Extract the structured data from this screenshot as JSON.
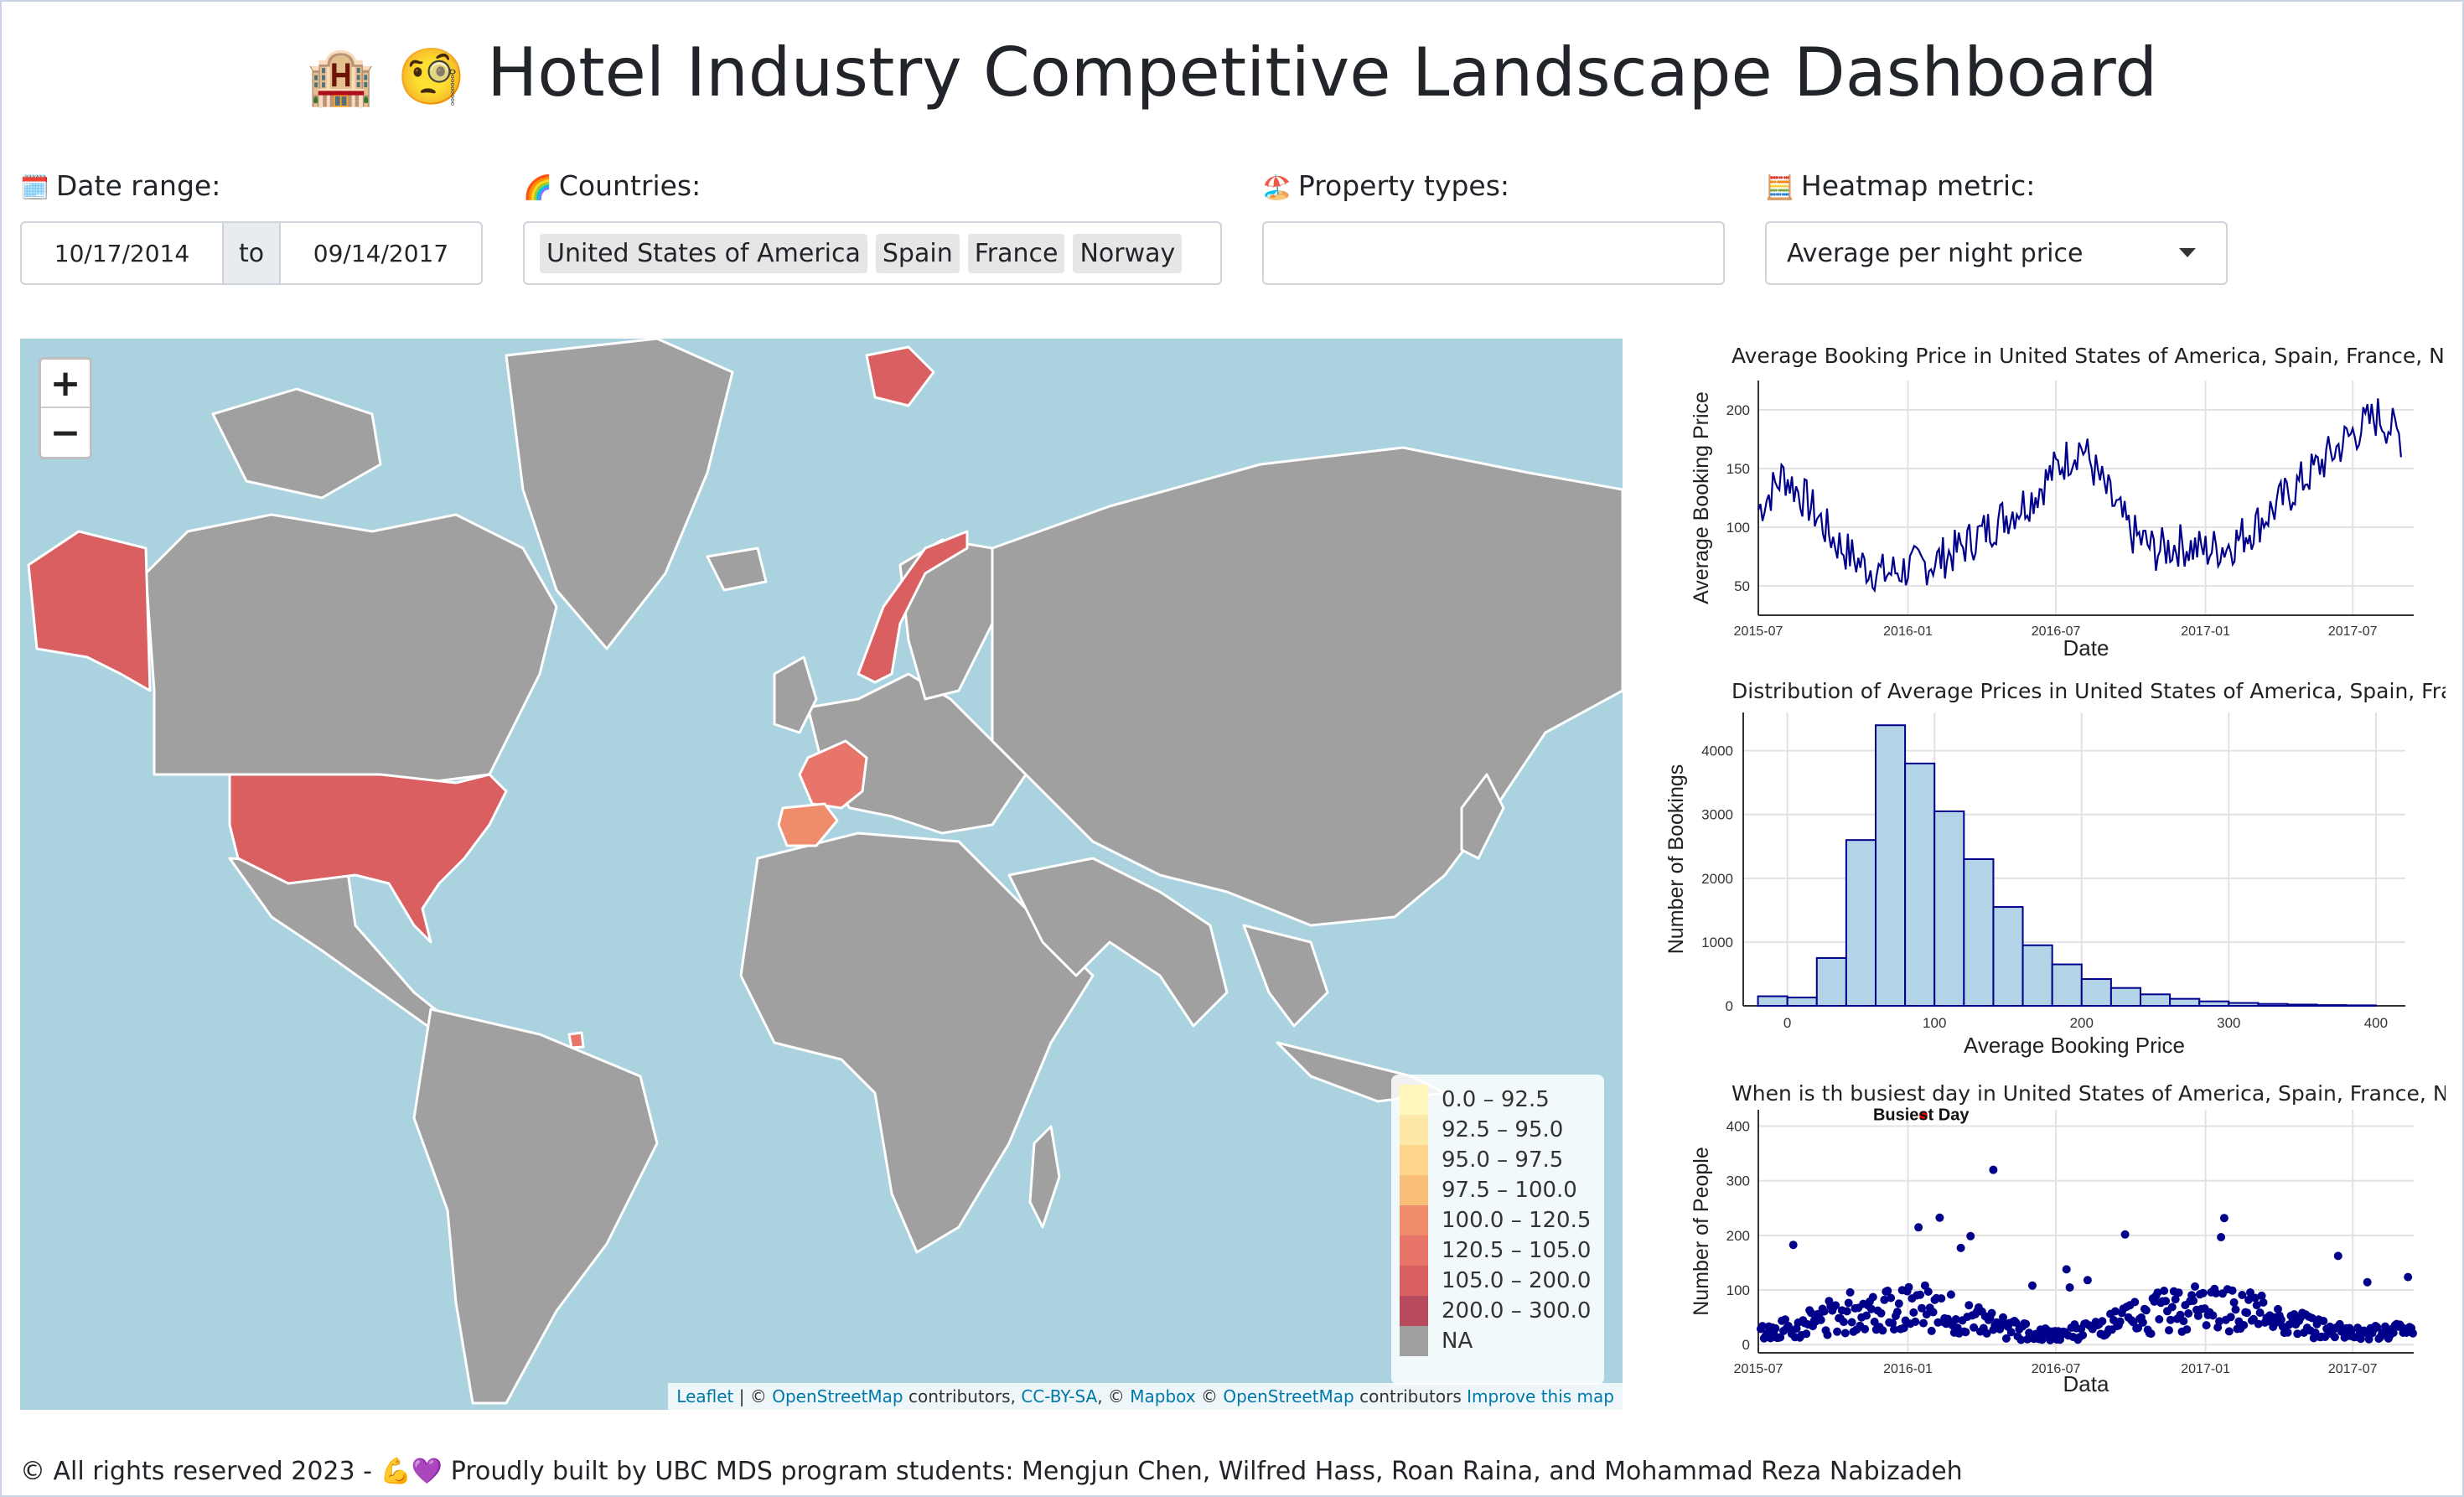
{
  "header": {
    "emoji_left": "🏨",
    "emoji_right": "🧐",
    "title": "Hotel Industry Competitive Landscape Dashboard"
  },
  "controls": {
    "date_range": {
      "label": "Date range:",
      "icon": "🗓️",
      "start": "10/17/2014",
      "separator": "to",
      "end": "09/14/2017"
    },
    "countries": {
      "label": "Countries:",
      "icon": "🌈",
      "selected": [
        "United States of America",
        "Spain",
        "France",
        "Norway"
      ]
    },
    "property_types": {
      "label": "Property types:",
      "icon": "🏖️",
      "value": ""
    },
    "heatmap_metric": {
      "label": "Heatmap metric:",
      "icon": "🧮",
      "selected": "Average per night price"
    }
  },
  "map": {
    "zoom_in": "+",
    "zoom_out": "−",
    "legend": [
      {
        "label": "0.0 – 92.5",
        "color": "#fff7bc"
      },
      {
        "label": "92.5 – 95.0",
        "color": "#fde8a8"
      },
      {
        "label": "95.0 – 97.5",
        "color": "#fdd58c"
      },
      {
        "label": "97.5 – 100.0",
        "color": "#f9bf78"
      },
      {
        "label": "100.0 – 120.5",
        "color": "#ef8c6b"
      },
      {
        "label": "120.5 – 105.0",
        "color": "#e8756a"
      },
      {
        "label": "105.0 – 200.0",
        "color": "#d95f61"
      },
      {
        "label": "200.0 – 300.0",
        "color": "#b84a5e"
      },
      {
        "label": "NA",
        "color": "#a0a0a0"
      }
    ],
    "attribution": {
      "leaflet": "Leaflet",
      "sep1": " | © ",
      "osm": "OpenStreetMap",
      "contrib": " contributors, ",
      "ccbysa": "CC-BY-SA",
      "sep2": ", © ",
      "mapbox": "Mapbox",
      "sep3": " © ",
      "osm2": "OpenStreetMap",
      "contrib2": " contributors ",
      "improve": "Improve this map"
    }
  },
  "charts": {
    "line": {
      "title": "Average Booking Price in United States of America, Spain, France, Norway",
      "xlabel": "Date",
      "ylabel": "Average Booking Price"
    },
    "hist": {
      "title": "Distribution of Average Prices in United States of America, Spain, France, Norway",
      "xlabel": "Average Booking Price",
      "ylabel": "Number of Bookings"
    },
    "scatter": {
      "title": "When is th busiest day in United States of America, Spain, France, Norway",
      "xlabel": "Data",
      "ylabel": "Number of People",
      "annotation": "Busiest Day"
    }
  },
  "chart_data": [
    {
      "type": "line",
      "x_ticks": [
        "2015-07",
        "2016-01",
        "2016-07",
        "2017-01",
        "2017-07"
      ],
      "y_ticks": [
        50,
        100,
        150,
        200
      ],
      "xlim": [
        "2015-07-01",
        "2017-09-14"
      ],
      "ylim": [
        25,
        225
      ],
      "series_color": "#00008b",
      "points": [
        [
          "2015-07-01",
          115
        ],
        [
          "2015-08-01",
          145
        ],
        [
          "2015-09-01",
          120
        ],
        [
          "2015-10-01",
          90
        ],
        [
          "2015-11-01",
          70
        ],
        [
          "2015-12-01",
          60
        ],
        [
          "2016-01-01",
          65
        ],
        [
          "2016-02-01",
          70
        ],
        [
          "2016-03-01",
          80
        ],
        [
          "2016-04-01",
          95
        ],
        [
          "2016-05-01",
          110
        ],
        [
          "2016-06-01",
          125
        ],
        [
          "2016-07-01",
          150
        ],
        [
          "2016-08-01",
          170
        ],
        [
          "2016-09-01",
          130
        ],
        [
          "2016-10-01",
          95
        ],
        [
          "2016-11-01",
          80
        ],
        [
          "2016-12-01",
          85
        ],
        [
          "2017-01-01",
          80
        ],
        [
          "2017-02-01",
          85
        ],
        [
          "2017-03-01",
          100
        ],
        [
          "2017-04-01",
          120
        ],
        [
          "2017-05-01",
          140
        ],
        [
          "2017-06-01",
          160
        ],
        [
          "2017-07-01",
          180
        ],
        [
          "2017-08-01",
          195
        ],
        [
          "2017-09-01",
          175
        ]
      ]
    },
    {
      "type": "bar",
      "x_ticks": [
        0,
        100,
        200,
        300,
        400
      ],
      "y_ticks": [
        0,
        1000,
        2000,
        3000,
        4000
      ],
      "xlim": [
        -30,
        420
      ],
      "ylim": [
        0,
        4600
      ],
      "bin_width": 20,
      "bar_fill": "#b3d4e6",
      "bar_stroke": "#00008b",
      "bins": [
        [
          -10,
          150
        ],
        [
          10,
          130
        ],
        [
          30,
          750
        ],
        [
          50,
          2600
        ],
        [
          70,
          4400
        ],
        [
          90,
          3800
        ],
        [
          110,
          3050
        ],
        [
          130,
          2300
        ],
        [
          150,
          1550
        ],
        [
          170,
          950
        ],
        [
          190,
          650
        ],
        [
          210,
          420
        ],
        [
          230,
          280
        ],
        [
          250,
          180
        ],
        [
          270,
          110
        ],
        [
          290,
          70
        ],
        [
          310,
          45
        ],
        [
          330,
          30
        ],
        [
          350,
          20
        ],
        [
          370,
          12
        ],
        [
          390,
          8
        ]
      ]
    },
    {
      "type": "scatter",
      "x_ticks": [
        "2015-07",
        "2016-01",
        "2016-07",
        "2017-01",
        "2017-07"
      ],
      "y_ticks": [
        0,
        100,
        200,
        300,
        400
      ],
      "xlim": [
        "2015-07-01",
        "2017-09-14"
      ],
      "ylim": [
        -15,
        430
      ],
      "point_color": "#00008b",
      "highlight": {
        "label": "Busiest Day",
        "x": "2016-01-20",
        "y": 420,
        "color": "#ff0000"
      },
      "outlier": {
        "x": "2016-04-15",
        "y": 320
      }
    }
  ],
  "footer": {
    "text_a": "© All rights reserved 2023 - ",
    "emoji": "💪💜",
    "text_b": " Proudly built by UBC MDS program students: Mengjun Chen, Wilfred Hass, Roan Raina, and Mohammad Reza Nabizadeh"
  }
}
